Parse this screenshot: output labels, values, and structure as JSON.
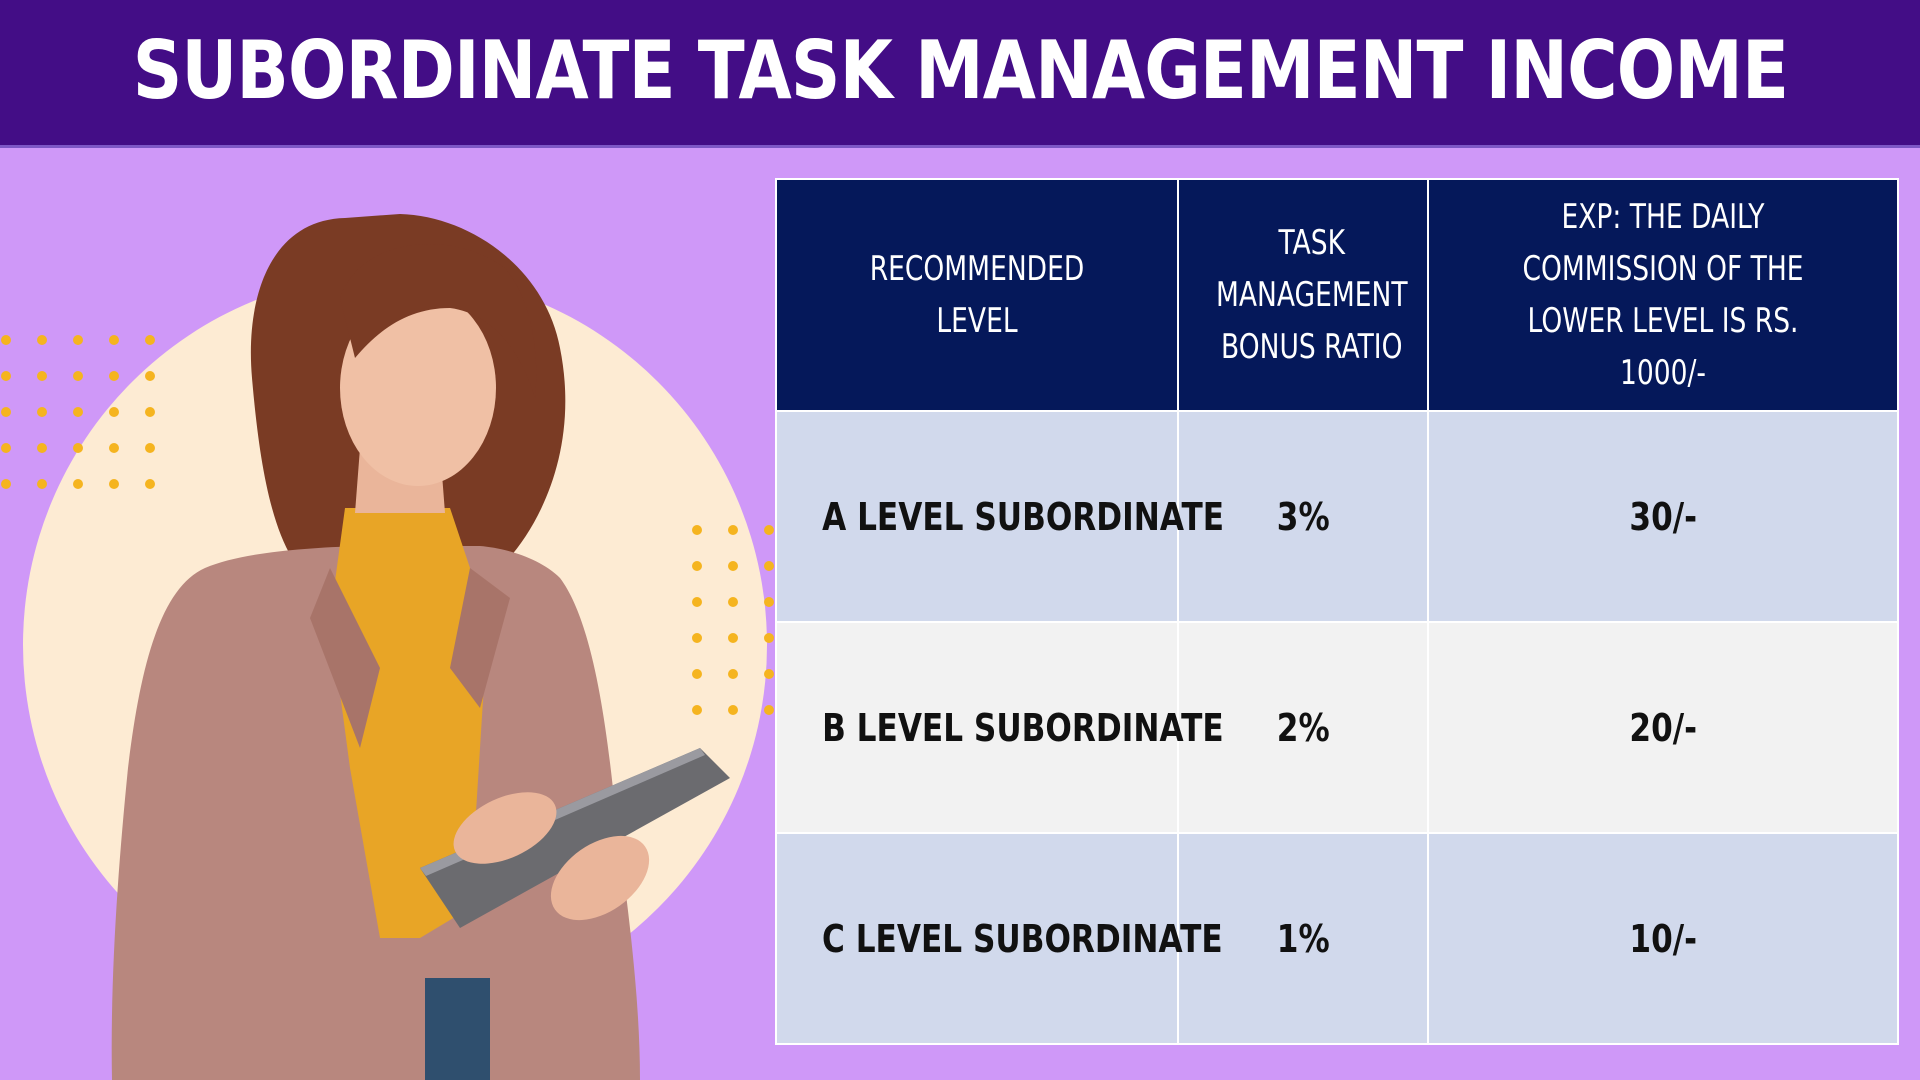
{
  "header": {
    "title": "SUBORDINATE TASK MANAGEMENT INCOME"
  },
  "table": {
    "headers": [
      "RECOMMENDED LEVEL",
      "TASK MANAGEMENT BONUS RATIO",
      "EXP: THE DAILY COMMISSION OF THE LOWER LEVEL IS RS. 1000/-"
    ],
    "rows": [
      {
        "level": "A LEVEL SUBORDINATE",
        "ratio": "3%",
        "commission": "30/-"
      },
      {
        "level": "B LEVEL SUBORDINATE",
        "ratio": "2%",
        "commission": "20/-"
      },
      {
        "level": "C LEVEL SUBORDINATE",
        "ratio": "1%",
        "commission": "10/-"
      }
    ]
  },
  "colors": {
    "header_bg": "#430d86",
    "page_bg": "#cf98f8",
    "table_header_bg": "#05185a",
    "row_odd_bg": "#d1d9ec",
    "row_even_bg": "#f2f2f2",
    "accent_dots": "#f5b41f",
    "circle_bg": "#fdebd3"
  },
  "illustration": {
    "subject": "woman-using-tablet"
  }
}
